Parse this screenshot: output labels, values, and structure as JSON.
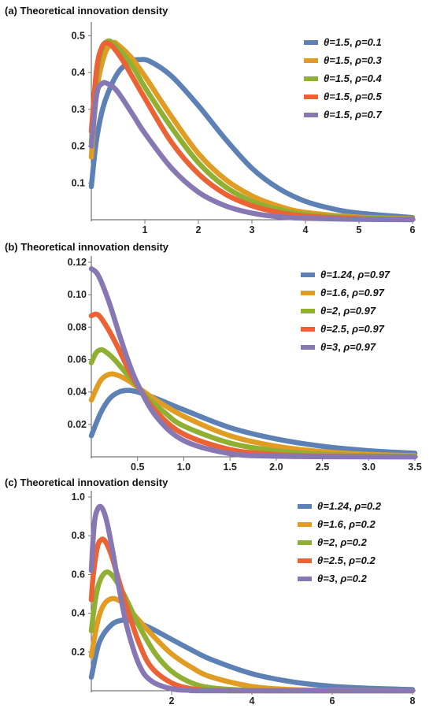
{
  "chart_data": [
    {
      "type": "line",
      "title": "(a) Theoretical innovation density",
      "xlabel": "",
      "ylabel": "",
      "xlim": [
        0,
        6
      ],
      "ylim": [
        0,
        0.52
      ],
      "xticks": [
        1,
        2,
        3,
        4,
        5,
        6
      ],
      "yticks": [
        0.1,
        0.2,
        0.3,
        0.4,
        0.5
      ],
      "xtick_labels": [
        "1",
        "2",
        "3",
        "4",
        "5",
        "6"
      ],
      "ytick_labels": [
        "0.1",
        "0.2",
        "0.3",
        "0.4",
        "0.5"
      ],
      "legend_position": "top-right",
      "series": [
        {
          "name": "θ=1.5, ρ=0.1",
          "theta_label": "θ=1.5",
          "rho_label": "ρ=0.1",
          "color": "#5E81B5",
          "x": [
            0,
            0.1,
            0.25,
            0.5,
            0.75,
            0.9,
            1.1,
            1.5,
            2,
            2.5,
            3,
            3.5,
            4,
            4.5,
            5,
            6
          ],
          "y": [
            0.09,
            0.22,
            0.32,
            0.4,
            0.43,
            0.435,
            0.43,
            0.39,
            0.31,
            0.22,
            0.14,
            0.085,
            0.05,
            0.03,
            0.018,
            0.006
          ]
        },
        {
          "name": "θ=1.5, ρ=0.3",
          "theta_label": "θ=1.5",
          "rho_label": "ρ=0.3",
          "color": "#E19C24",
          "x": [
            0,
            0.1,
            0.25,
            0.4,
            0.5,
            0.75,
            1,
            1.5,
            2,
            2.5,
            3,
            3.5,
            4,
            5,
            6
          ],
          "y": [
            0.17,
            0.35,
            0.45,
            0.48,
            0.475,
            0.44,
            0.39,
            0.28,
            0.18,
            0.11,
            0.065,
            0.037,
            0.02,
            0.007,
            0.003
          ]
        },
        {
          "name": "θ=1.5, ρ=0.4",
          "theta_label": "θ=1.5",
          "rho_label": "ρ=0.4",
          "color": "#8FB032",
          "x": [
            0,
            0.1,
            0.2,
            0.3,
            0.4,
            0.6,
            0.8,
            1,
            1.5,
            2,
            2.5,
            3,
            3.5,
            4,
            5,
            6
          ],
          "y": [
            0.21,
            0.39,
            0.465,
            0.485,
            0.48,
            0.45,
            0.41,
            0.36,
            0.25,
            0.155,
            0.09,
            0.05,
            0.028,
            0.015,
            0.005,
            0.002
          ]
        },
        {
          "name": "θ=1.5, ρ=0.5",
          "theta_label": "θ=1.5",
          "rho_label": "ρ=0.5",
          "color": "#EB6235",
          "x": [
            0,
            0.1,
            0.2,
            0.3,
            0.4,
            0.6,
            0.8,
            1,
            1.5,
            2,
            2.5,
            3,
            3.5,
            4,
            5,
            6
          ],
          "y": [
            0.24,
            0.41,
            0.47,
            0.48,
            0.47,
            0.43,
            0.38,
            0.33,
            0.21,
            0.125,
            0.07,
            0.038,
            0.02,
            0.01,
            0.003,
            0.001
          ]
        },
        {
          "name": "θ=1.5, ρ=0.7",
          "theta_label": "θ=1.5",
          "rho_label": "ρ=0.7",
          "color": "#8778B3",
          "x": [
            0,
            0.1,
            0.2,
            0.3,
            0.45,
            0.6,
            0.8,
            1,
            1.5,
            2,
            2.5,
            3,
            3.5,
            4,
            5,
            6
          ],
          "y": [
            0.2,
            0.34,
            0.37,
            0.37,
            0.355,
            0.325,
            0.28,
            0.235,
            0.14,
            0.075,
            0.038,
            0.018,
            0.008,
            0.004,
            0.001,
            0.0
          ]
        }
      ]
    },
    {
      "type": "line",
      "title": "(b) Theoretical innovation density",
      "xlabel": "",
      "ylabel": "",
      "xlim": [
        0,
        3.5
      ],
      "ylim": [
        0,
        0.12
      ],
      "xticks": [
        0.5,
        1.0,
        1.5,
        2.0,
        2.5,
        3.0,
        3.5
      ],
      "yticks": [
        0.02,
        0.04,
        0.06,
        0.08,
        0.1,
        0.12
      ],
      "xtick_labels": [
        "0.5",
        "1.0",
        "1.5",
        "2.0",
        "2.5",
        "3.0",
        "3.5"
      ],
      "ytick_labels": [
        "0.02",
        "0.04",
        "0.06",
        "0.08",
        "0.10",
        "0.12"
      ],
      "legend_position": "top-right",
      "series": [
        {
          "name": "θ=1.24, ρ=0.97",
          "theta_label": "θ=1.24",
          "rho_label": "ρ=0.97",
          "color": "#5E81B5",
          "x": [
            0,
            0.1,
            0.2,
            0.3,
            0.4,
            0.5,
            0.7,
            1,
            1.5,
            2,
            2.5,
            3,
            3.5
          ],
          "y": [
            0.013,
            0.027,
            0.036,
            0.04,
            0.041,
            0.04,
            0.036,
            0.029,
            0.018,
            0.011,
            0.0065,
            0.0038,
            0.0022
          ]
        },
        {
          "name": "θ=1.6, ρ=0.97",
          "theta_label": "θ=1.6",
          "rho_label": "ρ=0.97",
          "color": "#E19C24",
          "x": [
            0,
            0.1,
            0.2,
            0.3,
            0.4,
            0.5,
            0.7,
            1,
            1.5,
            2,
            2.5,
            3,
            3.5
          ],
          "y": [
            0.035,
            0.047,
            0.051,
            0.05,
            0.047,
            0.043,
            0.035,
            0.025,
            0.013,
            0.0065,
            0.0032,
            0.0015,
            0.0007
          ]
        },
        {
          "name": "θ=2, ρ=0.97",
          "theta_label": "θ=2",
          "rho_label": "ρ=0.97",
          "color": "#8FB032",
          "x": [
            0,
            0.05,
            0.1,
            0.15,
            0.25,
            0.4,
            0.6,
            0.8,
            1,
            1.5,
            2,
            2.5,
            3,
            3.5
          ],
          "y": [
            0.058,
            0.064,
            0.066,
            0.065,
            0.06,
            0.05,
            0.037,
            0.027,
            0.019,
            0.0085,
            0.0037,
            0.0016,
            0.0007,
            0.0003
          ]
        },
        {
          "name": "θ=2.5, ρ=0.97",
          "theta_label": "θ=2.5",
          "rho_label": "ρ=0.97",
          "color": "#EB6235",
          "x": [
            0,
            0.05,
            0.1,
            0.2,
            0.3,
            0.4,
            0.5,
            0.7,
            1,
            1.5,
            2,
            2.5,
            3,
            3.5
          ],
          "y": [
            0.087,
            0.088,
            0.086,
            0.077,
            0.066,
            0.054,
            0.044,
            0.028,
            0.014,
            0.0045,
            0.0014,
            0.0004,
            0.0001,
            0.0
          ]
        },
        {
          "name": "θ=3, ρ=0.97",
          "theta_label": "θ=3",
          "rho_label": "ρ=0.97",
          "color": "#8778B3",
          "x": [
            0,
            0.05,
            0.1,
            0.2,
            0.3,
            0.4,
            0.5,
            0.7,
            1,
            1.5,
            2,
            2.5,
            3,
            3.5
          ],
          "y": [
            0.116,
            0.114,
            0.109,
            0.094,
            0.076,
            0.059,
            0.045,
            0.025,
            0.01,
            0.002,
            0.0004,
            0.0001,
            0.0,
            0.0
          ]
        }
      ]
    },
    {
      "type": "line",
      "title": "(c) Theoretical innovation density",
      "xlabel": "",
      "ylabel": "",
      "xlim": [
        0,
        8
      ],
      "ylim": [
        0,
        1.0
      ],
      "xticks": [
        2,
        4,
        6,
        8
      ],
      "yticks": [
        0.2,
        0.4,
        0.6,
        0.8,
        1.0
      ],
      "xtick_labels": [
        "2",
        "4",
        "6",
        "8"
      ],
      "ytick_labels": [
        "0.2",
        "0.4",
        "0.6",
        "0.8",
        "1.0"
      ],
      "legend_position": "top-right",
      "series": [
        {
          "name": "θ=1.24, ρ=0.2",
          "theta_label": "θ=1.24",
          "rho_label": "ρ=0.2",
          "color": "#5E81B5",
          "x": [
            0,
            0.2,
            0.5,
            0.8,
            1,
            1.3,
            1.6,
            2,
            2.5,
            3,
            4,
            5,
            6,
            7,
            8
          ],
          "y": [
            0.07,
            0.25,
            0.34,
            0.365,
            0.36,
            0.34,
            0.31,
            0.265,
            0.21,
            0.16,
            0.088,
            0.046,
            0.023,
            0.012,
            0.006
          ]
        },
        {
          "name": "θ=1.6, ρ=0.2",
          "theta_label": "θ=1.6",
          "rho_label": "ρ=0.2",
          "color": "#E19C24",
          "x": [
            0,
            0.15,
            0.3,
            0.5,
            0.7,
            0.9,
            1.2,
            1.6,
            2,
            2.5,
            3,
            4,
            5,
            6,
            8
          ],
          "y": [
            0.18,
            0.35,
            0.44,
            0.475,
            0.465,
            0.43,
            0.36,
            0.27,
            0.19,
            0.12,
            0.07,
            0.022,
            0.006,
            0.002,
            0.0
          ]
        },
        {
          "name": "θ=2, ρ=0.2",
          "theta_label": "θ=2",
          "rho_label": "ρ=0.2",
          "color": "#8FB032",
          "x": [
            0,
            0.1,
            0.2,
            0.35,
            0.5,
            0.7,
            0.9,
            1.2,
            1.6,
            2,
            2.5,
            3,
            4,
            5,
            8
          ],
          "y": [
            0.31,
            0.47,
            0.56,
            0.61,
            0.6,
            0.54,
            0.46,
            0.33,
            0.19,
            0.1,
            0.04,
            0.015,
            0.002,
            0.0,
            0.0
          ]
        },
        {
          "name": "θ=2.5, ρ=0.2",
          "theta_label": "θ=2.5",
          "rho_label": "ρ=0.2",
          "color": "#EB6235",
          "x": [
            0,
            0.05,
            0.15,
            0.25,
            0.35,
            0.5,
            0.7,
            0.9,
            1.2,
            1.5,
            2,
            2.5,
            3,
            4,
            8
          ],
          "y": [
            0.47,
            0.6,
            0.74,
            0.78,
            0.77,
            0.7,
            0.56,
            0.42,
            0.24,
            0.12,
            0.04,
            0.01,
            0.003,
            0.0,
            0.0
          ]
        },
        {
          "name": "θ=3, ρ=0.2",
          "theta_label": "θ=3",
          "rho_label": "ρ=0.2",
          "color": "#8778B3",
          "x": [
            0,
            0.05,
            0.1,
            0.2,
            0.3,
            0.4,
            0.55,
            0.7,
            0.9,
            1.2,
            1.5,
            2,
            2.5,
            3,
            8
          ],
          "y": [
            0.62,
            0.8,
            0.9,
            0.95,
            0.93,
            0.86,
            0.7,
            0.52,
            0.32,
            0.13,
            0.05,
            0.01,
            0.002,
            0.0,
            0.0
          ]
        }
      ]
    }
  ]
}
